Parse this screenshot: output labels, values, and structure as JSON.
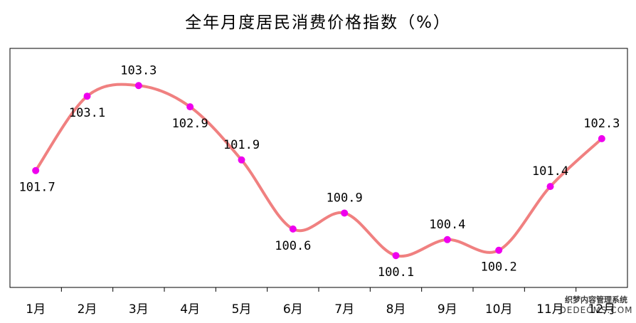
{
  "chart_data": {
    "type": "line",
    "title": "全年月度居民消费价格指数（%）",
    "categories": [
      "1月",
      "2月",
      "3月",
      "4月",
      "5月",
      "6月",
      "7月",
      "8月",
      "9月",
      "10月",
      "11月",
      "12月"
    ],
    "series": [
      {
        "values": [
          101.7,
          103.1,
          103.3,
          102.9,
          101.9,
          100.6,
          100.9,
          100.1,
          100.4,
          100.2,
          101.4,
          102.3
        ],
        "color": "#f08080",
        "marker_color": "#ee00ee",
        "smooth": true
      }
    ],
    "value_labels": [
      "101.7",
      "103.1",
      "103.3",
      "102.9",
      "101.9",
      "100.6",
      "100.9",
      "100.1",
      "100.4",
      "100.2",
      "101.4",
      "102.3"
    ],
    "label_positions": [
      "below",
      "below",
      "above",
      "below",
      "above",
      "below",
      "above",
      "below",
      "above",
      "below",
      "above",
      "above"
    ],
    "xlabel": "",
    "ylabel": "",
    "ylim": [
      99.5,
      104.0
    ],
    "grid": false,
    "legend": "none",
    "y_axis_visible": false
  },
  "watermark": {
    "line1": "织梦内容管理系统",
    "line2": "DEDECMS.COM"
  },
  "colors": {
    "line": "#f08080",
    "marker": "#ee00ee",
    "frame": "#000000",
    "background": "#ffffff"
  }
}
